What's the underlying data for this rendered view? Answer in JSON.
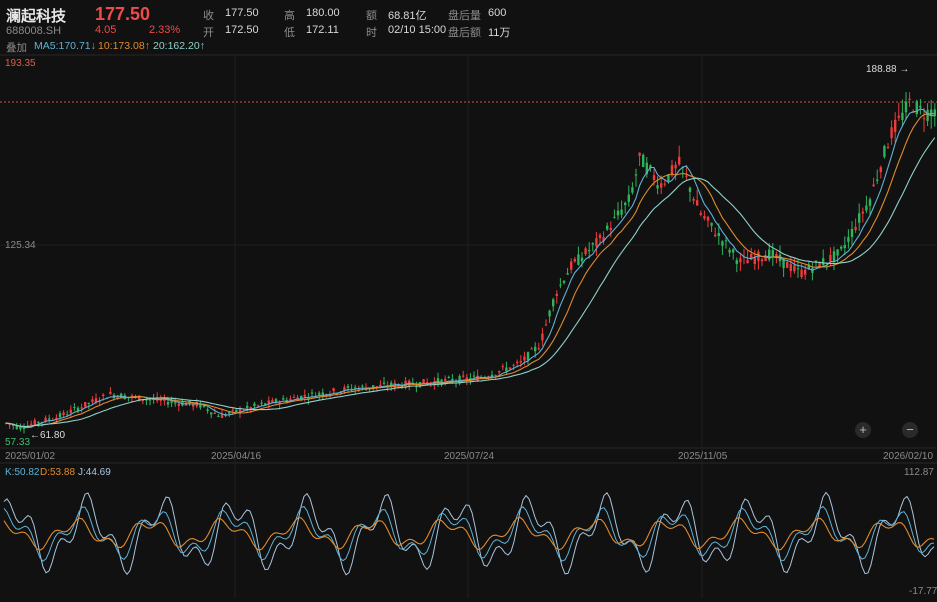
{
  "header": {
    "stock_name": "澜起科技",
    "stock_code": "688008.SH",
    "price": "177.50",
    "change": "4.05",
    "change_pct": "2.33%",
    "fields": {
      "close_label": "收",
      "close_value": "177.50",
      "open_label": "开",
      "open_value": "172.50",
      "high_label": "高",
      "high_value": "180.00",
      "low_label": "低",
      "low_value": "172.11",
      "amount_label": "额",
      "amount_value": "68.81亿",
      "time_label": "时",
      "time_value": "02/10 15:00",
      "after_vol_label": "盘后量",
      "after_vol_value": "600",
      "after_amt_label": "盘后额",
      "after_amt_value": "11万"
    }
  },
  "overlay": {
    "label": "叠加",
    "ma5": "MA5:170.71↓",
    "ma10": "10:173.08↑",
    "ma20": "20:162.20↑"
  },
  "price_axis": {
    "top": "193.35",
    "mid": "125.34",
    "bottom": "57.33",
    "high_marker": "188.88 →",
    "low_marker": "←61.80"
  },
  "date_axis": [
    "2025/01/02",
    "2025/04/16",
    "2025/07/24",
    "2025/11/05",
    "2026/02/10"
  ],
  "zoom": {
    "in": "+",
    "out": "−"
  },
  "kdj": {
    "k": "K:50.82",
    "d": "D:53.88",
    "j": "J:44.69",
    "top": "112.87",
    "bottom": "-17.77"
  },
  "colors": {
    "up": "#ef3b3b",
    "down": "#2fb35c",
    "ma5": "#5fb2d6",
    "ma10": "#e08a2c",
    "ma20": "#8fd0c9",
    "k_line": "#5fb2d6",
    "d_line": "#e08a2c",
    "j_line": "#a9c4dd"
  }
}
